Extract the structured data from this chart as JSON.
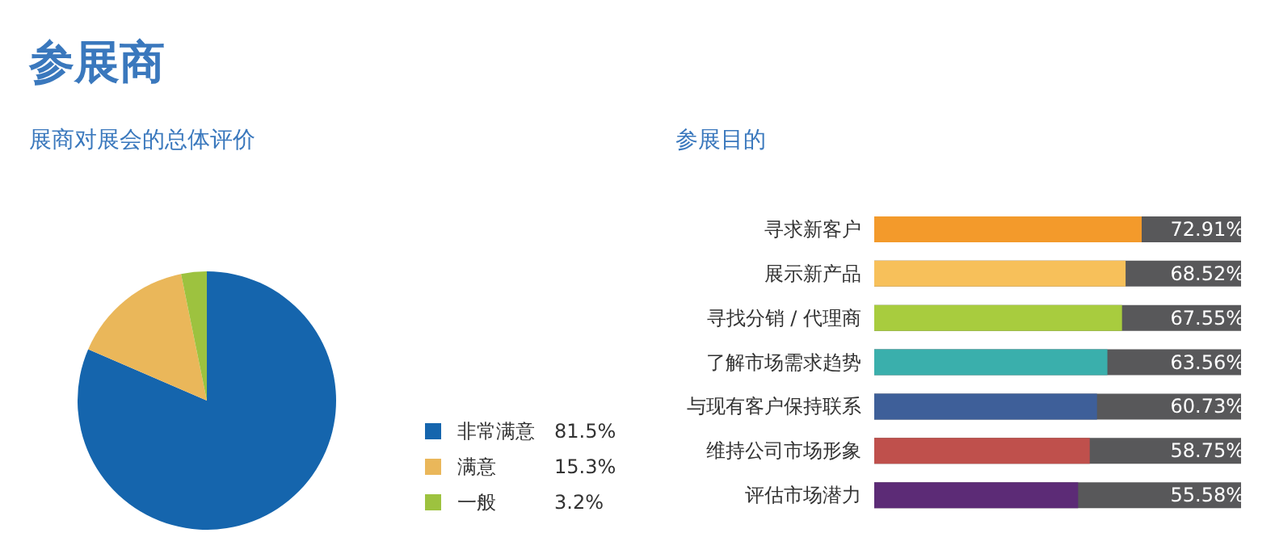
{
  "chart_data": [
    {
      "type": "pie",
      "title": "参展商",
      "subtitle": "展商对展会的总体评价",
      "categories": [
        "非常满意",
        "满意",
        "一般"
      ],
      "values": [
        81.5,
        15.3,
        3.2
      ],
      "value_labels": [
        "81.5%",
        "15.3%",
        "3.2%"
      ],
      "colors": [
        "#1565ad",
        "#eab75a",
        "#9dc23f"
      ],
      "legend": "right"
    },
    {
      "type": "bar",
      "title": "参展目的",
      "orientation": "horizontal",
      "categories": [
        "寻求新客户",
        "展示新产品",
        "寻找分销 / 代理商",
        "了解市场需求趋势",
        "与现有客户保持联系",
        "维持公司市场形象",
        "评估市场潜力"
      ],
      "values": [
        72.91,
        68.52,
        67.55,
        63.56,
        60.73,
        58.75,
        55.58
      ],
      "value_labels": [
        "72.91%",
        "68.52%",
        "67.55%",
        "63.56%",
        "60.73%",
        "58.75%",
        "55.58%"
      ],
      "colors": [
        "#f39a2b",
        "#f7c05a",
        "#a8cc3e",
        "#3aafac",
        "#3e5f99",
        "#bf504c",
        "#5c2b76"
      ],
      "xlim": [
        0,
        100
      ],
      "tick_labels": "y"
    }
  ]
}
